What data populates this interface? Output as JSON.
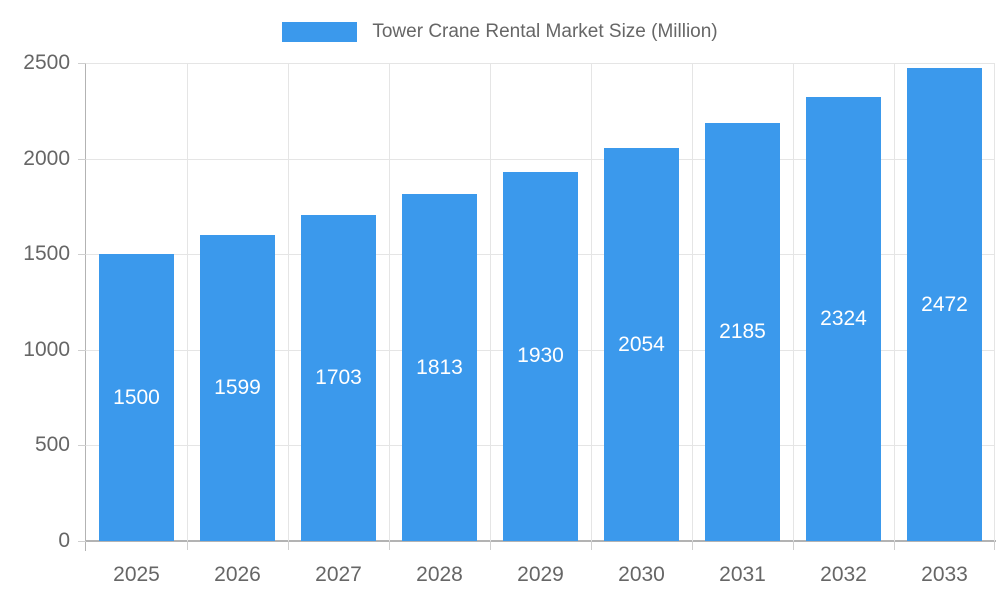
{
  "chart_data": {
    "type": "bar",
    "title": "",
    "categories": [
      "2025",
      "2026",
      "2027",
      "2028",
      "2029",
      "2030",
      "2031",
      "2032",
      "2033"
    ],
    "series": [
      {
        "name": "Tower Crane Rental Market Size (Million)",
        "values": [
          1500,
          1599,
          1703,
          1813,
          1930,
          2054,
          2185,
          2324,
          2472
        ],
        "color": "#3B99EC"
      }
    ],
    "xlabel": "",
    "ylabel": "",
    "ylim": [
      0,
      2500
    ],
    "yticks": [
      0,
      500,
      1000,
      1500,
      2000,
      2500
    ],
    "grid": true,
    "legend_position": "top",
    "bar_label_position": "inside-center"
  },
  "colors": {
    "bar": "#3B99EC",
    "gridline": "#E5E5E5",
    "axis_line": "#B3B3B3",
    "tick": "#CFCFCF",
    "axis_label_text": "#666666",
    "legend_text": "#666666",
    "bar_label_text": "#FFFFFF",
    "background": "#FFFFFF"
  }
}
